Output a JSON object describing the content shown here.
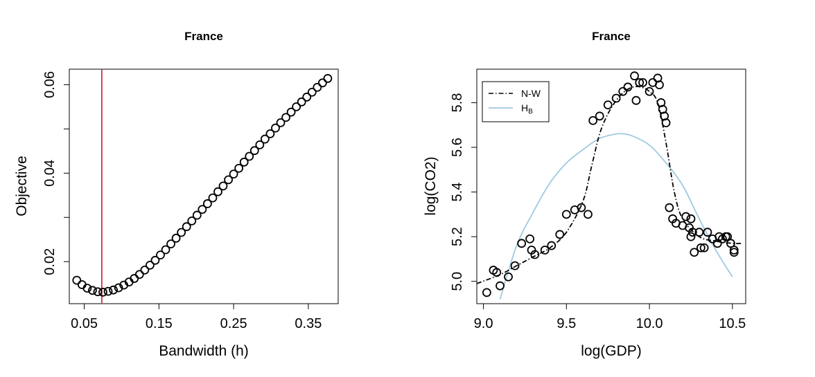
{
  "chart_data": [
    {
      "type": "scatter",
      "title": "France",
      "xlabel": "Bandwidth (h)",
      "ylabel": "Objective",
      "xlim": [
        0.03,
        0.39
      ],
      "ylim": [
        0.0105,
        0.0635
      ],
      "xticks": [
        0.05,
        0.15,
        0.25,
        0.35
      ],
      "xtick_labels": [
        "0.05",
        "0.15",
        "0.25",
        "0.35"
      ],
      "yticks": [
        0.02,
        0.03,
        0.04,
        0.05,
        0.06
      ],
      "ytick_labels": [
        "0.02",
        "",
        "0.04",
        "",
        "0.06"
      ],
      "vline": {
        "x": 0.0735,
        "color": "#cc3344"
      },
      "series": [
        {
          "name": "objective",
          "x": [
            0.04,
            0.047,
            0.054,
            0.061,
            0.068,
            0.075,
            0.082,
            0.089,
            0.096,
            0.103,
            0.11,
            0.117,
            0.124,
            0.131,
            0.138,
            0.145,
            0.152,
            0.159,
            0.166,
            0.173,
            0.18,
            0.187,
            0.194,
            0.201,
            0.208,
            0.215,
            0.222,
            0.229,
            0.236,
            0.243,
            0.25,
            0.257,
            0.264,
            0.271,
            0.278,
            0.285,
            0.292,
            0.299,
            0.306,
            0.313,
            0.32,
            0.327,
            0.334,
            0.341,
            0.348,
            0.355,
            0.362,
            0.369,
            0.376
          ],
          "y": [
            0.0158,
            0.0148,
            0.014,
            0.0135,
            0.0132,
            0.0131,
            0.0133,
            0.0136,
            0.0141,
            0.0147,
            0.0154,
            0.0162,
            0.0171,
            0.0181,
            0.0192,
            0.0203,
            0.0215,
            0.0227,
            0.024,
            0.0253,
            0.0266,
            0.0279,
            0.0292,
            0.0305,
            0.0318,
            0.0331,
            0.0344,
            0.0358,
            0.0371,
            0.0385,
            0.0398,
            0.0411,
            0.0425,
            0.0438,
            0.0451,
            0.0464,
            0.0477,
            0.0489,
            0.0502,
            0.0514,
            0.0526,
            0.0538,
            0.055,
            0.0561,
            0.0572,
            0.0583,
            0.0594,
            0.0604,
            0.0614
          ]
        }
      ]
    },
    {
      "type": "scatter",
      "title": "France",
      "xlabel": "log(GDP)",
      "ylabel": "log(CO2)",
      "xlim": [
        8.96,
        10.58
      ],
      "ylim": [
        4.9,
        5.95
      ],
      "xticks": [
        9.0,
        9.5,
        10.0,
        10.5
      ],
      "xtick_labels": [
        "9.0",
        "9.5",
        "10.0",
        "10.5"
      ],
      "yticks": [
        5.0,
        5.2,
        5.4,
        5.6,
        5.8
      ],
      "ytick_labels": [
        "5.0",
        "5.2",
        "5.4",
        "5.6",
        "5.8"
      ],
      "legend": {
        "position": "top-left",
        "entries": [
          {
            "label": "N-W",
            "style": "dotdash",
            "color": "#000000"
          },
          {
            "label": "H",
            "subscript": "B",
            "style": "solid",
            "color": "#9ecae1"
          }
        ]
      },
      "series": [
        {
          "name": "observations",
          "points": [
            [
              9.02,
              4.95
            ],
            [
              9.06,
              5.05
            ],
            [
              9.08,
              5.04
            ],
            [
              9.1,
              4.98
            ],
            [
              9.15,
              5.02
            ],
            [
              9.19,
              5.07
            ],
            [
              9.23,
              5.17
            ],
            [
              9.28,
              5.19
            ],
            [
              9.29,
              5.14
            ],
            [
              9.31,
              5.12
            ],
            [
              9.37,
              5.14
            ],
            [
              9.41,
              5.16
            ],
            [
              9.46,
              5.21
            ],
            [
              9.5,
              5.3
            ],
            [
              9.55,
              5.32
            ],
            [
              9.59,
              5.33
            ],
            [
              9.63,
              5.3
            ],
            [
              9.66,
              5.72
            ],
            [
              9.7,
              5.74
            ],
            [
              9.75,
              5.79
            ],
            [
              9.8,
              5.82
            ],
            [
              9.84,
              5.85
            ],
            [
              9.87,
              5.87
            ],
            [
              9.91,
              5.92
            ],
            [
              9.92,
              5.81
            ],
            [
              9.94,
              5.89
            ],
            [
              9.96,
              5.89
            ],
            [
              10.0,
              5.85
            ],
            [
              10.02,
              5.89
            ],
            [
              10.05,
              5.91
            ],
            [
              10.06,
              5.88
            ],
            [
              10.07,
              5.8
            ],
            [
              10.08,
              5.77
            ],
            [
              10.09,
              5.74
            ],
            [
              10.1,
              5.71
            ],
            [
              10.12,
              5.33
            ],
            [
              10.14,
              5.28
            ],
            [
              10.16,
              5.26
            ],
            [
              10.2,
              5.25
            ],
            [
              10.22,
              5.29
            ],
            [
              10.24,
              5.24
            ],
            [
              10.25,
              5.28
            ],
            [
              10.25,
              5.2
            ],
            [
              10.26,
              5.22
            ],
            [
              10.27,
              5.13
            ],
            [
              10.3,
              5.22
            ],
            [
              10.31,
              5.15
            ],
            [
              10.33,
              5.15
            ],
            [
              10.35,
              5.22
            ],
            [
              10.38,
              5.19
            ],
            [
              10.41,
              5.17
            ],
            [
              10.42,
              5.2
            ],
            [
              10.44,
              5.19
            ],
            [
              10.46,
              5.2
            ],
            [
              10.47,
              5.2
            ],
            [
              10.49,
              5.17
            ],
            [
              10.51,
              5.13
            ],
            [
              10.51,
              5.14
            ]
          ]
        },
        {
          "name": "N-W",
          "x": [
            8.96,
            9.1,
            9.2,
            9.3,
            9.4,
            9.5,
            9.6,
            9.65,
            9.7,
            9.75,
            9.8,
            9.85,
            9.9,
            9.95,
            10.0,
            10.05,
            10.1,
            10.15,
            10.2,
            10.3,
            10.4,
            10.5,
            10.56
          ],
          "y": [
            4.99,
            5.03,
            5.07,
            5.11,
            5.15,
            5.22,
            5.36,
            5.51,
            5.66,
            5.75,
            5.81,
            5.85,
            5.87,
            5.87,
            5.85,
            5.8,
            5.62,
            5.4,
            5.28,
            5.2,
            5.18,
            5.17,
            5.17
          ]
        },
        {
          "name": "H_B",
          "x": [
            9.1,
            9.2,
            9.3,
            9.4,
            9.5,
            9.6,
            9.7,
            9.8,
            9.85,
            9.9,
            10.0,
            10.1,
            10.2,
            10.3,
            10.4,
            10.5
          ],
          "y": [
            4.92,
            5.16,
            5.31,
            5.44,
            5.53,
            5.59,
            5.64,
            5.66,
            5.66,
            5.65,
            5.61,
            5.53,
            5.43,
            5.28,
            5.14,
            5.02
          ]
        }
      ]
    }
  ]
}
